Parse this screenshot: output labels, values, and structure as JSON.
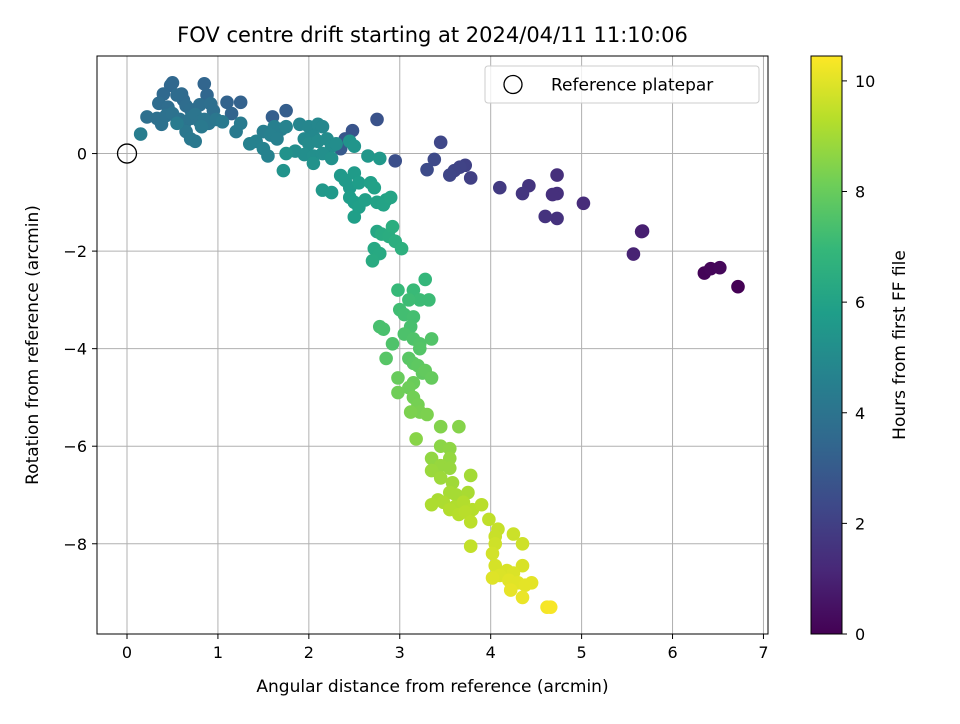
{
  "chart_data": {
    "type": "scatter",
    "title": "FOV centre drift starting at 2024/04/11 11:10:06",
    "xlabel": "Angular distance from reference (arcmin)",
    "ylabel": "Rotation from reference (arcmin)",
    "xlim": [
      -0.33,
      7.05
    ],
    "ylim": [
      -9.85,
      2.0
    ],
    "xticks": [
      0,
      1,
      2,
      3,
      4,
      5,
      6,
      7
    ],
    "xtick_labels": [
      "0",
      "1",
      "2",
      "3",
      "4",
      "5",
      "6",
      "7"
    ],
    "yticks": [
      0,
      -2,
      -4,
      -6,
      -8
    ],
    "ytick_labels": [
      "0",
      "−2",
      "−4",
      "−6",
      "−8"
    ],
    "grid": true,
    "legend": {
      "position": "top-right",
      "entries": [
        {
          "label": "Reference platepar",
          "marker": "open-circle"
        }
      ]
    },
    "reference": {
      "x": 0,
      "y": 0
    },
    "colorbar": {
      "label": "Hours from first FF file",
      "colormap": "viridis",
      "range": [
        0,
        10.45
      ],
      "ticks": [
        0,
        2,
        4,
        6,
        8,
        10
      ],
      "tick_labels": [
        "0",
        "2",
        "4",
        "6",
        "8",
        "10"
      ]
    },
    "colormap_stops": [
      "#440154",
      "#482878",
      "#3e4989",
      "#31688e",
      "#26828e",
      "#1f9e89",
      "#35b779",
      "#6ece58",
      "#b5de2b",
      "#fde725"
    ],
    "points": [
      {
        "x": 6.72,
        "y": -2.73,
        "t": 0.0
      },
      {
        "x": 6.35,
        "y": -2.45,
        "t": 0.1
      },
      {
        "x": 6.42,
        "y": -2.36,
        "t": 0.15
      },
      {
        "x": 6.52,
        "y": -2.34,
        "t": 0.2
      },
      {
        "x": 5.67,
        "y": -1.59,
        "t": 0.9
      },
      {
        "x": 5.66,
        "y": -1.6,
        "t": 0.9
      },
      {
        "x": 5.57,
        "y": -2.06,
        "t": 1.0
      },
      {
        "x": 5.02,
        "y": -1.02,
        "t": 1.3
      },
      {
        "x": 4.73,
        "y": -0.44,
        "t": 1.4
      },
      {
        "x": 4.73,
        "y": -0.82,
        "t": 1.45
      },
      {
        "x": 4.68,
        "y": -0.84,
        "t": 1.45
      },
      {
        "x": 4.73,
        "y": -1.33,
        "t": 1.5
      },
      {
        "x": 4.6,
        "y": -1.29,
        "t": 1.55
      },
      {
        "x": 4.42,
        "y": -0.66,
        "t": 1.6
      },
      {
        "x": 4.35,
        "y": -0.82,
        "t": 1.65
      },
      {
        "x": 4.1,
        "y": -0.7,
        "t": 1.8
      },
      {
        "x": 3.78,
        "y": -0.5,
        "t": 2.0
      },
      {
        "x": 3.72,
        "y": -0.24,
        "t": 2.05
      },
      {
        "x": 3.66,
        "y": -0.28,
        "t": 2.1
      },
      {
        "x": 3.6,
        "y": -0.35,
        "t": 2.15
      },
      {
        "x": 3.55,
        "y": -0.44,
        "t": 2.2
      },
      {
        "x": 3.45,
        "y": 0.23,
        "t": 2.25
      },
      {
        "x": 3.38,
        "y": -0.12,
        "t": 2.35
      },
      {
        "x": 3.3,
        "y": -0.33,
        "t": 2.4
      },
      {
        "x": 2.95,
        "y": -0.15,
        "t": 2.55
      },
      {
        "x": 2.75,
        "y": 0.7,
        "t": 2.65
      },
      {
        "x": 2.48,
        "y": 0.47,
        "t": 2.75
      },
      {
        "x": 2.4,
        "y": 0.3,
        "t": 2.85
      },
      {
        "x": 2.35,
        "y": 0.1,
        "t": 2.95
      },
      {
        "x": 1.75,
        "y": 0.88,
        "t": 3.1
      },
      {
        "x": 1.6,
        "y": 0.75,
        "t": 3.15
      },
      {
        "x": 1.25,
        "y": 1.05,
        "t": 3.25
      },
      {
        "x": 1.1,
        "y": 1.05,
        "t": 3.3
      },
      {
        "x": 1.15,
        "y": 0.82,
        "t": 3.35
      },
      {
        "x": 0.85,
        "y": 1.43,
        "t": 3.4
      },
      {
        "x": 0.88,
        "y": 1.2,
        "t": 3.45
      },
      {
        "x": 0.5,
        "y": 1.45,
        "t": 3.5
      },
      {
        "x": 0.48,
        "y": 1.4,
        "t": 3.5
      },
      {
        "x": 0.4,
        "y": 1.22,
        "t": 3.55
      },
      {
        "x": 0.6,
        "y": 1.22,
        "t": 3.6
      },
      {
        "x": 0.62,
        "y": 1.1,
        "t": 3.6
      },
      {
        "x": 0.55,
        "y": 1.2,
        "t": 3.65
      },
      {
        "x": 0.35,
        "y": 1.03,
        "t": 3.65
      },
      {
        "x": 0.45,
        "y": 0.95,
        "t": 3.7
      },
      {
        "x": 0.65,
        "y": 0.98,
        "t": 3.7
      },
      {
        "x": 0.7,
        "y": 0.9,
        "t": 3.75
      },
      {
        "x": 0.8,
        "y": 1.0,
        "t": 3.75
      },
      {
        "x": 0.92,
        "y": 1.02,
        "t": 3.8
      },
      {
        "x": 0.95,
        "y": 0.88,
        "t": 3.8
      },
      {
        "x": 0.22,
        "y": 0.75,
        "t": 3.85
      },
      {
        "x": 0.33,
        "y": 0.72,
        "t": 3.85
      },
      {
        "x": 0.38,
        "y": 0.6,
        "t": 3.9
      },
      {
        "x": 0.43,
        "y": 0.78,
        "t": 3.9
      },
      {
        "x": 0.5,
        "y": 0.82,
        "t": 3.95
      },
      {
        "x": 0.58,
        "y": 0.7,
        "t": 3.95
      },
      {
        "x": 0.63,
        "y": 0.6,
        "t": 4.0
      },
      {
        "x": 0.7,
        "y": 0.72,
        "t": 4.0
      },
      {
        "x": 0.75,
        "y": 0.8,
        "t": 4.05
      },
      {
        "x": 0.8,
        "y": 0.65,
        "t": 4.05
      },
      {
        "x": 0.85,
        "y": 0.7,
        "t": 4.1
      },
      {
        "x": 0.9,
        "y": 0.62,
        "t": 4.1
      },
      {
        "x": 0.98,
        "y": 0.7,
        "t": 4.15
      },
      {
        "x": 0.65,
        "y": 0.45,
        "t": 4.15
      },
      {
        "x": 0.7,
        "y": 0.3,
        "t": 4.2
      },
      {
        "x": 0.75,
        "y": 0.25,
        "t": 4.2
      },
      {
        "x": 0.82,
        "y": 0.55,
        "t": 4.25
      },
      {
        "x": 1.05,
        "y": 0.65,
        "t": 4.25
      },
      {
        "x": 1.25,
        "y": 0.62,
        "t": 4.3
      },
      {
        "x": 1.2,
        "y": 0.45,
        "t": 4.3
      },
      {
        "x": 0.55,
        "y": 0.62,
        "t": 4.35
      },
      {
        "x": 0.15,
        "y": 0.4,
        "t": 4.4
      },
      {
        "x": 1.5,
        "y": 0.45,
        "t": 4.45
      },
      {
        "x": 1.62,
        "y": 0.55,
        "t": 4.5
      },
      {
        "x": 1.7,
        "y": 0.5,
        "t": 4.5
      },
      {
        "x": 1.58,
        "y": 0.38,
        "t": 4.55
      },
      {
        "x": 1.65,
        "y": 0.3,
        "t": 4.55
      },
      {
        "x": 1.42,
        "y": 0.25,
        "t": 4.6
      },
      {
        "x": 1.35,
        "y": 0.2,
        "t": 4.6
      },
      {
        "x": 1.5,
        "y": 0.1,
        "t": 4.65
      },
      {
        "x": 1.55,
        "y": -0.05,
        "t": 4.65
      },
      {
        "x": 1.75,
        "y": 0.55,
        "t": 4.7
      },
      {
        "x": 1.9,
        "y": 0.6,
        "t": 4.75
      },
      {
        "x": 2.0,
        "y": 0.55,
        "t": 4.8
      },
      {
        "x": 2.1,
        "y": 0.6,
        "t": 4.85
      },
      {
        "x": 2.15,
        "y": 0.55,
        "t": 4.85
      },
      {
        "x": 2.05,
        "y": 0.35,
        "t": 4.9
      },
      {
        "x": 1.95,
        "y": 0.3,
        "t": 4.95
      },
      {
        "x": 2.0,
        "y": 0.2,
        "t": 5.0
      },
      {
        "x": 2.1,
        "y": 0.25,
        "t": 5.0
      },
      {
        "x": 2.2,
        "y": 0.3,
        "t": 5.05
      },
      {
        "x": 2.25,
        "y": 0.15,
        "t": 5.1
      },
      {
        "x": 2.3,
        "y": 0.2,
        "t": 5.1
      },
      {
        "x": 1.85,
        "y": 0.05,
        "t": 5.15
      },
      {
        "x": 1.95,
        "y": -0.02,
        "t": 5.15
      },
      {
        "x": 2.05,
        "y": -0.05,
        "t": 5.2
      },
      {
        "x": 2.15,
        "y": 0.0,
        "t": 5.2
      },
      {
        "x": 2.25,
        "y": -0.1,
        "t": 5.25
      },
      {
        "x": 2.05,
        "y": -0.2,
        "t": 5.3
      },
      {
        "x": 1.75,
        "y": 0.0,
        "t": 5.3
      },
      {
        "x": 1.72,
        "y": -0.35,
        "t": 5.35
      },
      {
        "x": 2.45,
        "y": 0.25,
        "t": 5.4
      },
      {
        "x": 2.5,
        "y": 0.15,
        "t": 5.45
      },
      {
        "x": 2.65,
        "y": -0.05,
        "t": 5.5
      },
      {
        "x": 2.78,
        "y": -0.1,
        "t": 5.55
      },
      {
        "x": 2.15,
        "y": -0.75,
        "t": 5.55
      },
      {
        "x": 2.25,
        "y": -0.8,
        "t": 5.6
      },
      {
        "x": 2.35,
        "y": -0.45,
        "t": 5.6
      },
      {
        "x": 2.4,
        "y": -0.55,
        "t": 5.65
      },
      {
        "x": 2.45,
        "y": -0.7,
        "t": 5.65
      },
      {
        "x": 2.5,
        "y": -0.4,
        "t": 5.7
      },
      {
        "x": 2.55,
        "y": -0.6,
        "t": 5.75
      },
      {
        "x": 2.45,
        "y": -0.9,
        "t": 5.75
      },
      {
        "x": 2.5,
        "y": -1.0,
        "t": 5.8
      },
      {
        "x": 2.55,
        "y": -1.1,
        "t": 5.85
      },
      {
        "x": 2.5,
        "y": -1.3,
        "t": 5.85
      },
      {
        "x": 2.62,
        "y": -0.95,
        "t": 5.9
      },
      {
        "x": 2.68,
        "y": -0.6,
        "t": 5.9
      },
      {
        "x": 2.72,
        "y": -0.7,
        "t": 5.95
      },
      {
        "x": 2.75,
        "y": -1.0,
        "t": 6.0
      },
      {
        "x": 2.85,
        "y": -0.95,
        "t": 6.0
      },
      {
        "x": 2.82,
        "y": -1.05,
        "t": 6.05
      },
      {
        "x": 2.9,
        "y": -0.9,
        "t": 6.1
      },
      {
        "x": 2.75,
        "y": -1.6,
        "t": 6.2
      },
      {
        "x": 2.72,
        "y": -1.95,
        "t": 6.25
      },
      {
        "x": 2.78,
        "y": -2.05,
        "t": 6.3
      },
      {
        "x": 2.7,
        "y": -2.2,
        "t": 6.35
      },
      {
        "x": 2.8,
        "y": -1.65,
        "t": 6.4
      },
      {
        "x": 2.88,
        "y": -1.7,
        "t": 6.45
      },
      {
        "x": 2.92,
        "y": -1.5,
        "t": 6.5
      },
      {
        "x": 2.95,
        "y": -1.8,
        "t": 6.55
      },
      {
        "x": 3.02,
        "y": -1.95,
        "t": 6.6
      },
      {
        "x": 3.28,
        "y": -2.58,
        "t": 6.9
      },
      {
        "x": 2.98,
        "y": -2.8,
        "t": 7.0
      },
      {
        "x": 3.15,
        "y": -2.8,
        "t": 7.05
      },
      {
        "x": 3.22,
        "y": -3.0,
        "t": 7.1
      },
      {
        "x": 3.32,
        "y": -3.0,
        "t": 7.1
      },
      {
        "x": 3.1,
        "y": -3.0,
        "t": 7.15
      },
      {
        "x": 3.0,
        "y": -3.2,
        "t": 7.2
      },
      {
        "x": 3.05,
        "y": -3.3,
        "t": 7.25
      },
      {
        "x": 3.15,
        "y": -3.35,
        "t": 7.3
      },
      {
        "x": 3.12,
        "y": -3.55,
        "t": 7.35
      },
      {
        "x": 2.78,
        "y": -3.55,
        "t": 7.35
      },
      {
        "x": 2.82,
        "y": -3.6,
        "t": 7.4
      },
      {
        "x": 3.05,
        "y": -3.7,
        "t": 7.45
      },
      {
        "x": 2.92,
        "y": -3.9,
        "t": 7.5
      },
      {
        "x": 3.15,
        "y": -3.8,
        "t": 7.5
      },
      {
        "x": 3.22,
        "y": -3.9,
        "t": 7.55
      },
      {
        "x": 3.35,
        "y": -3.8,
        "t": 7.55
      },
      {
        "x": 3.22,
        "y": -4.0,
        "t": 7.6
      },
      {
        "x": 2.85,
        "y": -4.2,
        "t": 7.65
      },
      {
        "x": 3.1,
        "y": -4.2,
        "t": 7.7
      },
      {
        "x": 3.15,
        "y": -4.3,
        "t": 7.75
      },
      {
        "x": 3.2,
        "y": -4.35,
        "t": 7.8
      },
      {
        "x": 3.25,
        "y": -4.5,
        "t": 7.85
      },
      {
        "x": 3.28,
        "y": -4.45,
        "t": 7.9
      },
      {
        "x": 3.35,
        "y": -4.6,
        "t": 7.95
      },
      {
        "x": 2.98,
        "y": -4.6,
        "t": 8.0
      },
      {
        "x": 3.15,
        "y": -4.7,
        "t": 8.05
      },
      {
        "x": 3.1,
        "y": -4.8,
        "t": 8.1
      },
      {
        "x": 2.98,
        "y": -4.9,
        "t": 8.15
      },
      {
        "x": 3.15,
        "y": -5.0,
        "t": 8.2
      },
      {
        "x": 3.2,
        "y": -5.15,
        "t": 8.25
      },
      {
        "x": 3.22,
        "y": -5.3,
        "t": 8.3
      },
      {
        "x": 3.3,
        "y": -5.35,
        "t": 8.35
      },
      {
        "x": 3.12,
        "y": -5.3,
        "t": 8.35
      },
      {
        "x": 3.45,
        "y": -5.6,
        "t": 8.45
      },
      {
        "x": 3.65,
        "y": -5.6,
        "t": 8.5
      },
      {
        "x": 3.18,
        "y": -5.85,
        "t": 8.55
      },
      {
        "x": 3.45,
        "y": -6.0,
        "t": 8.6
      },
      {
        "x": 3.55,
        "y": -6.05,
        "t": 8.65
      },
      {
        "x": 3.35,
        "y": -6.25,
        "t": 8.7
      },
      {
        "x": 3.55,
        "y": -6.25,
        "t": 8.75
      },
      {
        "x": 3.45,
        "y": -6.4,
        "t": 8.8
      },
      {
        "x": 3.55,
        "y": -6.45,
        "t": 8.8
      },
      {
        "x": 3.35,
        "y": -6.5,
        "t": 8.85
      },
      {
        "x": 3.45,
        "y": -6.65,
        "t": 8.9
      },
      {
        "x": 3.58,
        "y": -6.75,
        "t": 8.95
      },
      {
        "x": 3.78,
        "y": -6.6,
        "t": 9.0
      },
      {
        "x": 3.55,
        "y": -6.95,
        "t": 9.05
      },
      {
        "x": 3.62,
        "y": -7.0,
        "t": 9.05
      },
      {
        "x": 3.75,
        "y": -6.95,
        "t": 9.1
      },
      {
        "x": 3.42,
        "y": -7.1,
        "t": 9.1
      },
      {
        "x": 3.48,
        "y": -7.15,
        "t": 9.15
      },
      {
        "x": 3.35,
        "y": -7.2,
        "t": 9.15
      },
      {
        "x": 3.6,
        "y": -7.25,
        "t": 9.2
      },
      {
        "x": 3.7,
        "y": -7.15,
        "t": 9.25
      },
      {
        "x": 3.55,
        "y": -7.3,
        "t": 9.25
      },
      {
        "x": 3.65,
        "y": -7.4,
        "t": 9.3
      },
      {
        "x": 3.8,
        "y": -7.3,
        "t": 9.3
      },
      {
        "x": 3.9,
        "y": -7.2,
        "t": 9.35
      },
      {
        "x": 3.72,
        "y": -7.35,
        "t": 9.35
      },
      {
        "x": 3.78,
        "y": -7.55,
        "t": 9.4
      },
      {
        "x": 3.98,
        "y": -7.5,
        "t": 9.45
      },
      {
        "x": 3.78,
        "y": -8.05,
        "t": 9.5
      },
      {
        "x": 4.08,
        "y": -7.7,
        "t": 9.55
      },
      {
        "x": 4.05,
        "y": -7.85,
        "t": 9.6
      },
      {
        "x": 4.25,
        "y": -7.8,
        "t": 9.65
      },
      {
        "x": 4.35,
        "y": -8.0,
        "t": 9.7
      },
      {
        "x": 4.05,
        "y": -8.0,
        "t": 9.7
      },
      {
        "x": 4.02,
        "y": -8.2,
        "t": 9.75
      },
      {
        "x": 4.05,
        "y": -8.45,
        "t": 9.8
      },
      {
        "x": 4.18,
        "y": -8.55,
        "t": 9.85
      },
      {
        "x": 4.35,
        "y": -8.45,
        "t": 9.85
      },
      {
        "x": 4.25,
        "y": -8.6,
        "t": 9.9
      },
      {
        "x": 4.1,
        "y": -8.65,
        "t": 9.9
      },
      {
        "x": 4.02,
        "y": -8.7,
        "t": 9.95
      },
      {
        "x": 4.2,
        "y": -8.75,
        "t": 10.0
      },
      {
        "x": 4.3,
        "y": -8.8,
        "t": 10.0
      },
      {
        "x": 4.45,
        "y": -8.8,
        "t": 10.05
      },
      {
        "x": 4.38,
        "y": -8.85,
        "t": 10.05
      },
      {
        "x": 4.22,
        "y": -8.95,
        "t": 10.1
      },
      {
        "x": 4.35,
        "y": -9.1,
        "t": 10.15
      },
      {
        "x": 4.62,
        "y": -9.3,
        "t": 10.3
      },
      {
        "x": 4.66,
        "y": -9.3,
        "t": 10.35
      }
    ]
  }
}
